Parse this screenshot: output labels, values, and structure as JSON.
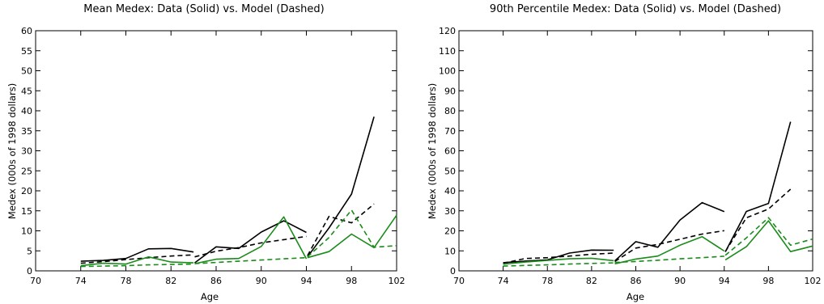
{
  "colors": {
    "black": "#000000",
    "green": "#1a8c1a"
  },
  "chart_data": [
    {
      "type": "line",
      "title": "Mean Medex:  Data (Solid) vs. Model (Dashed)",
      "xlabel": "Age",
      "ylabel": "Medex (000s of 1998 dollars)",
      "xlim": [
        70,
        102
      ],
      "ylim": [
        0,
        60
      ],
      "xticks": [
        70,
        74,
        78,
        82,
        86,
        90,
        94,
        98,
        102
      ],
      "yticks": [
        0,
        5,
        10,
        15,
        20,
        25,
        30,
        35,
        40,
        45,
        50,
        55,
        60
      ],
      "grid": false,
      "series": [
        {
          "color": "#000000",
          "style": "solid",
          "segments": [
            [
              [
                74,
                2.4
              ],
              [
                76,
                2.6
              ],
              [
                78,
                3.1
              ],
              [
                80,
                5.5
              ],
              [
                82,
                5.6
              ],
              [
                84,
                4.7
              ]
            ],
            [
              [
                84.1,
                2.0
              ],
              [
                86,
                6.0
              ],
              [
                88,
                5.6
              ],
              [
                90,
                9.7
              ],
              [
                92,
                12.5
              ],
              [
                94,
                9.6
              ]
            ],
            [
              [
                94.1,
                3.5
              ],
              [
                96,
                10.7
              ],
              [
                98,
                19.2
              ],
              [
                100,
                38.5
              ]
            ]
          ]
        },
        {
          "color": "#000000",
          "style": "dashed",
          "segments": [
            [
              [
                74,
                1.9
              ],
              [
                76,
                2.3
              ],
              [
                78,
                2.8
              ],
              [
                80,
                3.3
              ],
              [
                82,
                3.7
              ],
              [
                84,
                4.0
              ]
            ],
            [
              [
                84.1,
                3.5
              ],
              [
                86,
                4.9
              ],
              [
                88,
                5.8
              ],
              [
                90,
                7.0
              ],
              [
                92,
                7.8
              ],
              [
                94,
                8.6
              ]
            ],
            [
              [
                94.1,
                3.8
              ],
              [
                96,
                13.6
              ],
              [
                98,
                12.0
              ],
              [
                100,
                16.7
              ]
            ]
          ]
        },
        {
          "color": "#1a8c1a",
          "style": "solid",
          "segments": [
            [
              [
                74,
                1.3
              ],
              [
                76,
                1.9
              ],
              [
                78,
                1.7
              ],
              [
                80,
                3.5
              ],
              [
                82,
                2.2
              ],
              [
                84,
                2.0
              ]
            ],
            [
              [
                84.1,
                1.8
              ],
              [
                86,
                2.9
              ],
              [
                88,
                3.1
              ],
              [
                90,
                6.1
              ],
              [
                92,
                13.5
              ],
              [
                94,
                3.0
              ]
            ],
            [
              [
                94.1,
                3.3
              ],
              [
                96,
                4.8
              ],
              [
                98,
                9.2
              ],
              [
                100,
                5.8
              ],
              [
                102,
                13.9
              ]
            ]
          ]
        },
        {
          "color": "#1a8c1a",
          "style": "dashed",
          "segments": [
            [
              [
                74,
                1.1
              ],
              [
                76,
                1.2
              ],
              [
                78,
                1.3
              ],
              [
                80,
                1.5
              ],
              [
                82,
                1.6
              ],
              [
                84,
                1.7
              ]
            ],
            [
              [
                84.1,
                1.8
              ],
              [
                86,
                2.1
              ],
              [
                88,
                2.4
              ],
              [
                90,
                2.7
              ],
              [
                92,
                3.0
              ],
              [
                94,
                3.3
              ]
            ],
            [
              [
                94.1,
                3.5
              ],
              [
                96,
                8.3
              ],
              [
                98,
                15.2
              ],
              [
                100,
                5.9
              ],
              [
                102,
                6.3
              ]
            ]
          ]
        }
      ]
    },
    {
      "type": "line",
      "title": "90th Percentile Medex:  Data (Solid) vs. Model (Dashed)",
      "xlabel": "Age",
      "ylabel": "Medex (000s of 1998 dollars)",
      "xlim": [
        70,
        102
      ],
      "ylim": [
        0,
        120
      ],
      "xticks": [
        70,
        74,
        78,
        82,
        86,
        90,
        94,
        98,
        102
      ],
      "yticks": [
        0,
        10,
        20,
        30,
        40,
        50,
        60,
        70,
        80,
        90,
        100,
        110,
        120
      ],
      "grid": false,
      "series": [
        {
          "color": "#000000",
          "style": "solid",
          "segments": [
            [
              [
                74,
                4.1
              ],
              [
                76,
                4.9
              ],
              [
                78,
                5.5
              ],
              [
                80,
                8.9
              ],
              [
                82,
                10.4
              ],
              [
                84,
                10.3
              ]
            ],
            [
              [
                84.1,
                5.0
              ],
              [
                86,
                14.6
              ],
              [
                88,
                11.8
              ],
              [
                90,
                25.4
              ],
              [
                92,
                34.1
              ],
              [
                94,
                29.6
              ]
            ],
            [
              [
                94.1,
                9.5
              ],
              [
                96,
                29.7
              ],
              [
                98,
                33.7
              ],
              [
                100,
                74.5
              ]
            ]
          ]
        },
        {
          "color": "#000000",
          "style": "dashed",
          "segments": [
            [
              [
                74,
                3.8
              ],
              [
                76,
                6.2
              ],
              [
                78,
                6.6
              ],
              [
                80,
                7.4
              ],
              [
                82,
                8.3
              ],
              [
                84,
                8.9
              ]
            ],
            [
              [
                84.1,
                4.7
              ],
              [
                86,
                11.4
              ],
              [
                88,
                13.2
              ],
              [
                90,
                15.8
              ],
              [
                92,
                18.4
              ],
              [
                94,
                20.1
              ]
            ],
            [
              [
                94.1,
                9.6
              ],
              [
                96,
                26.5
              ],
              [
                98,
                30.9
              ],
              [
                100,
                40.8
              ]
            ]
          ]
        },
        {
          "color": "#1a8c1a",
          "style": "solid",
          "segments": [
            [
              [
                74,
                3.3
              ],
              [
                76,
                4.4
              ],
              [
                78,
                5.2
              ],
              [
                80,
                6.0
              ],
              [
                82,
                6.3
              ],
              [
                84,
                5.1
              ]
            ],
            [
              [
                84.1,
                3.5
              ],
              [
                86,
                5.9
              ],
              [
                88,
                7.4
              ],
              [
                90,
                12.8
              ],
              [
                92,
                17.1
              ],
              [
                94,
                9.9
              ]
            ],
            [
              [
                94.1,
                5.5
              ],
              [
                96,
                12.1
              ],
              [
                98,
                25.0
              ],
              [
                100,
                9.6
              ],
              [
                102,
                12.4
              ]
            ]
          ]
        },
        {
          "color": "#1a8c1a",
          "style": "dashed",
          "segments": [
            [
              [
                74,
                2.4
              ],
              [
                76,
                2.7
              ],
              [
                78,
                3.0
              ],
              [
                80,
                3.4
              ],
              [
                82,
                3.7
              ],
              [
                84,
                4.0
              ]
            ],
            [
              [
                84.1,
                4.2
              ],
              [
                86,
                4.7
              ],
              [
                88,
                5.3
              ],
              [
                90,
                6.0
              ],
              [
                92,
                6.6
              ],
              [
                94,
                7.3
              ]
            ],
            [
              [
                94.1,
                7.8
              ],
              [
                96,
                16.5
              ],
              [
                98,
                26.6
              ],
              [
                100,
                12.8
              ],
              [
                102,
                15.9
              ]
            ]
          ]
        }
      ]
    }
  ]
}
